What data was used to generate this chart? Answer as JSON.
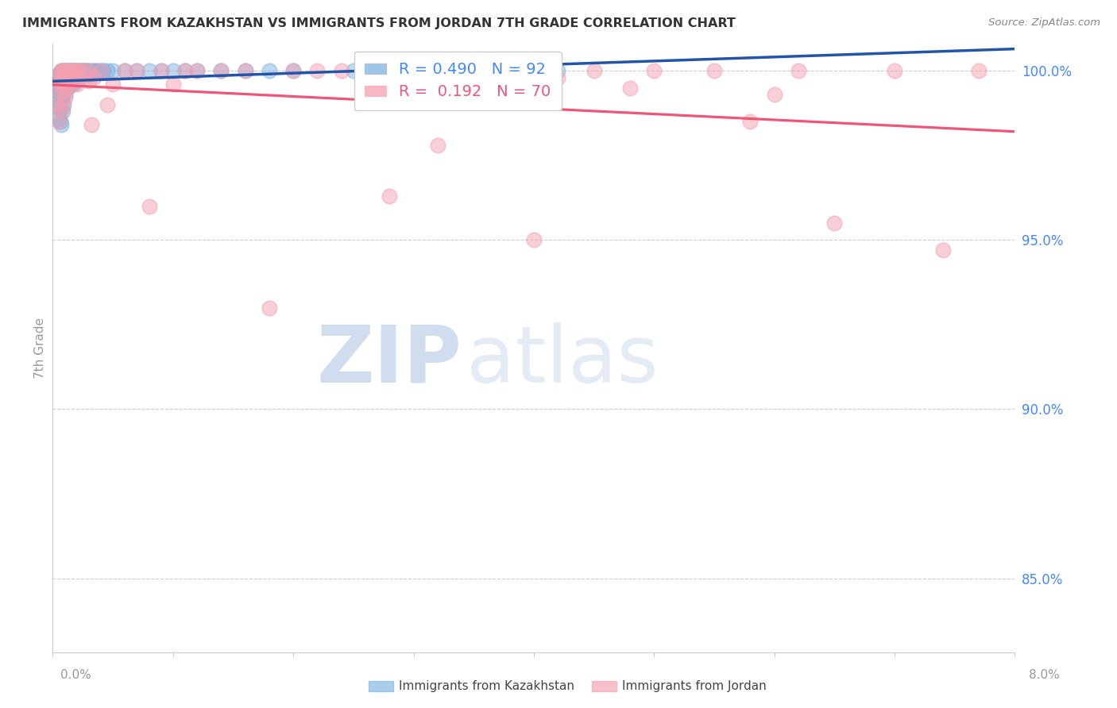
{
  "title": "IMMIGRANTS FROM KAZAKHSTAN VS IMMIGRANTS FROM JORDAN 7TH GRADE CORRELATION CHART",
  "source": "Source: ZipAtlas.com",
  "ylabel": "7th Grade",
  "yaxis_labels": [
    "85.0%",
    "90.0%",
    "95.0%",
    "100.0%"
  ],
  "yaxis_values": [
    0.85,
    0.9,
    0.95,
    1.0
  ],
  "xlim": [
    0.0,
    0.08
  ],
  "ylim": [
    0.828,
    1.008
  ],
  "R_kaz": 0.49,
  "N_kaz": 92,
  "R_jor": 0.192,
  "N_jor": 70,
  "color_kaz": "#7EB3E0",
  "color_jor": "#F4A0B0",
  "trendline_color_kaz": "#2255AA",
  "trendline_color_jor": "#EE5577",
  "background_color": "#ffffff",
  "grid_color": "#cccccc",
  "title_color": "#333333",
  "source_color": "#888888",
  "axis_color": "#999999",
  "right_axis_color": "#4488FF",
  "legend_label_color_kaz": "#4488FF",
  "legend_label_color_jor": "#EE5577",
  "kaz_x": [
    0.0003,
    0.0003,
    0.0004,
    0.0004,
    0.0004,
    0.0005,
    0.0005,
    0.0005,
    0.0005,
    0.0006,
    0.0006,
    0.0006,
    0.0006,
    0.0006,
    0.0007,
    0.0007,
    0.0007,
    0.0007,
    0.0007,
    0.0007,
    0.0007,
    0.0008,
    0.0008,
    0.0008,
    0.0008,
    0.0008,
    0.0008,
    0.0009,
    0.0009,
    0.0009,
    0.0009,
    0.0009,
    0.001,
    0.001,
    0.001,
    0.001,
    0.0011,
    0.0011,
    0.0012,
    0.0012,
    0.0012,
    0.0013,
    0.0013,
    0.0014,
    0.0014,
    0.0015,
    0.0015,
    0.0016,
    0.0016,
    0.0017,
    0.0017,
    0.0018,
    0.0018,
    0.0019,
    0.002,
    0.002,
    0.0021,
    0.0022,
    0.0023,
    0.0024,
    0.0025,
    0.0026,
    0.0027,
    0.0028,
    0.003,
    0.003,
    0.0032,
    0.0034,
    0.0036,
    0.0038,
    0.004,
    0.0042,
    0.0045,
    0.005,
    0.006,
    0.007,
    0.008,
    0.009,
    0.01,
    0.011,
    0.012,
    0.014,
    0.016,
    0.018,
    0.02,
    0.025,
    0.03,
    0.035,
    0.038,
    0.04,
    0.041,
    0.042
  ],
  "kaz_y": [
    0.997,
    0.993,
    0.999,
    0.995,
    0.989,
    0.998,
    0.995,
    0.991,
    0.986,
    0.999,
    0.997,
    0.994,
    0.991,
    0.985,
    1.0,
    0.999,
    0.997,
    0.995,
    0.992,
    0.989,
    0.984,
    1.0,
    0.999,
    0.998,
    0.996,
    0.993,
    0.988,
    1.0,
    0.999,
    0.997,
    0.995,
    0.99,
    1.0,
    0.999,
    0.997,
    0.993,
    1.0,
    0.996,
    1.0,
    0.999,
    0.995,
    1.0,
    0.997,
    1.0,
    0.998,
    1.0,
    0.996,
    1.0,
    0.997,
    1.0,
    0.996,
    1.0,
    0.997,
    1.0,
    1.0,
    0.997,
    1.0,
    1.0,
    1.0,
    1.0,
    1.0,
    1.0,
    1.0,
    1.0,
    1.0,
    0.999,
    1.0,
    1.0,
    1.0,
    1.0,
    1.0,
    1.0,
    1.0,
    1.0,
    1.0,
    1.0,
    1.0,
    1.0,
    1.0,
    1.0,
    1.0,
    1.0,
    1.0,
    1.0,
    1.0,
    1.0,
    1.0,
    1.0,
    1.0,
    1.0,
    1.0,
    1.0
  ],
  "jor_x": [
    0.0003,
    0.0004,
    0.0005,
    0.0005,
    0.0006,
    0.0006,
    0.0007,
    0.0007,
    0.0007,
    0.0008,
    0.0008,
    0.0008,
    0.0009,
    0.0009,
    0.001,
    0.001,
    0.001,
    0.0011,
    0.0012,
    0.0012,
    0.0013,
    0.0014,
    0.0015,
    0.0016,
    0.0017,
    0.0018,
    0.002,
    0.002,
    0.0022,
    0.0024,
    0.0026,
    0.003,
    0.003,
    0.0032,
    0.0034,
    0.004,
    0.0045,
    0.005,
    0.006,
    0.007,
    0.008,
    0.009,
    0.01,
    0.011,
    0.012,
    0.014,
    0.016,
    0.018,
    0.02,
    0.022,
    0.024,
    0.026,
    0.028,
    0.03,
    0.032,
    0.034,
    0.036,
    0.04,
    0.042,
    0.045,
    0.048,
    0.05,
    0.055,
    0.058,
    0.06,
    0.062,
    0.065,
    0.07,
    0.074,
    0.077
  ],
  "jor_y": [
    0.99,
    0.998,
    0.996,
    0.985,
    0.999,
    0.994,
    1.0,
    0.997,
    0.988,
    1.0,
    0.997,
    0.99,
    1.0,
    0.994,
    1.0,
    0.998,
    0.992,
    0.997,
    1.0,
    0.995,
    0.998,
    1.0,
    0.996,
    1.0,
    0.997,
    1.0,
    1.0,
    0.996,
    1.0,
    0.998,
    1.0,
    1.0,
    0.997,
    0.984,
    0.998,
    1.0,
    0.99,
    0.996,
    1.0,
    1.0,
    0.96,
    1.0,
    0.996,
    1.0,
    1.0,
    1.0,
    1.0,
    0.93,
    1.0,
    1.0,
    1.0,
    1.0,
    0.963,
    1.0,
    0.978,
    1.0,
    1.0,
    0.95,
    0.998,
    1.0,
    0.995,
    1.0,
    1.0,
    0.985,
    0.993,
    1.0,
    0.955,
    1.0,
    0.947,
    1.0
  ]
}
